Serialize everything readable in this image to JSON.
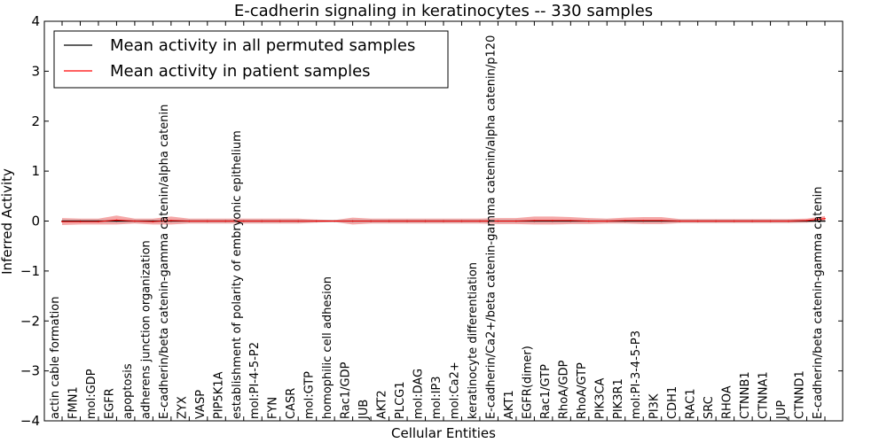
{
  "chart_data": {
    "type": "line",
    "title": "E-cadherin signaling in keratinocytes -- 330 samples",
    "xlabel": "Cellular Entities",
    "ylabel": "Inferred Activity",
    "ylim": [
      -4,
      4
    ],
    "yticks": [
      "4",
      "3",
      "2",
      "1",
      "0",
      "−1",
      "−2",
      "−3",
      "−4"
    ],
    "grid": false,
    "legend_position": "top-left",
    "categories": [
      "actin cable formation",
      "FMN1",
      "mol:GDP",
      "EGFR",
      "apoptosis",
      "adherens junction organization",
      "E-cadherin/beta catenin-gamma catenin/alpha catenin",
      "ZYX",
      "VASP",
      "PIP5K1A",
      "establishment of polarity of embryonic epithelium",
      "mol:PI-4-5-P2",
      "FYN",
      "CASR",
      "mol:GTP",
      "homophilic cell adhesion",
      "Rac1/GDP",
      "JUB",
      "AKT2",
      "PLCG1",
      "mol:DAG",
      "mol:IP3",
      "mol:Ca2+",
      "keratinocyte differentiation",
      "E-cadherin/Ca2+/beta catenin-gamma catenin/alpha catenin/p120",
      "AKT1",
      "EGFR(dimer)",
      "Rac1/GTP",
      "RhoA/GDP",
      "RhoA/GTP",
      "PIK3CA",
      "PIK3R1",
      "mol:PI-3-4-5-P3",
      "PI3K",
      "CDH1",
      "RAC1",
      "SRC",
      "RHOA",
      "CTNNB1",
      "CTNNA1",
      "JUP",
      "CTNND1",
      "E-cadherin/beta catenin-gamma catenin"
    ],
    "series": [
      {
        "name": "Mean activity in all permuted samples",
        "color": "#000000",
        "values": [
          0,
          0,
          0,
          0,
          0,
          0,
          0,
          0,
          0,
          0,
          0,
          0,
          0,
          0,
          0,
          0,
          0,
          0,
          0,
          0,
          0,
          0,
          0,
          0,
          0,
          0,
          0,
          0,
          0,
          0,
          0,
          0,
          0,
          0,
          0,
          0,
          0,
          0,
          0,
          0,
          0,
          0,
          0
        ],
        "band": [
          0.03,
          0.03,
          0.03,
          0.03,
          0.03,
          0.03,
          0.03,
          0.03,
          0.03,
          0.03,
          0.03,
          0.03,
          0.03,
          0.03,
          0.02,
          0.02,
          0.03,
          0.03,
          0.03,
          0.03,
          0.03,
          0.03,
          0.03,
          0.03,
          0.03,
          0.03,
          0.03,
          0.03,
          0.03,
          0.03,
          0.03,
          0.03,
          0.03,
          0.03,
          0.03,
          0.03,
          0.03,
          0.03,
          0.03,
          0.03,
          0.03,
          0.03,
          0.03
        ]
      },
      {
        "name": "Mean activity in patient samples",
        "color": "#ff0000",
        "band_color": "#f28b8b",
        "values": [
          -0.01,
          -0.01,
          -0.01,
          0.02,
          0,
          -0.01,
          0.01,
          0,
          0,
          0,
          0,
          0,
          0,
          0,
          0,
          0,
          0,
          0,
          0,
          0,
          0,
          0,
          0,
          0,
          0,
          0,
          0.01,
          0.01,
          0.01,
          0,
          0,
          0.01,
          0.01,
          0.01,
          0,
          0,
          0,
          0,
          0,
          0,
          0,
          0.01,
          0.05
        ],
        "band": [
          0.07,
          0.06,
          0.06,
          0.09,
          0.05,
          0.06,
          0.08,
          0.05,
          0.05,
          0.05,
          0.05,
          0.05,
          0.05,
          0.05,
          0.03,
          0.02,
          0.07,
          0.05,
          0.05,
          0.05,
          0.05,
          0.05,
          0.05,
          0.05,
          0.06,
          0.06,
          0.08,
          0.08,
          0.07,
          0.06,
          0.05,
          0.06,
          0.07,
          0.07,
          0.04,
          0.04,
          0.04,
          0.04,
          0.04,
          0.04,
          0.04,
          0.04,
          0.05
        ]
      }
    ]
  }
}
